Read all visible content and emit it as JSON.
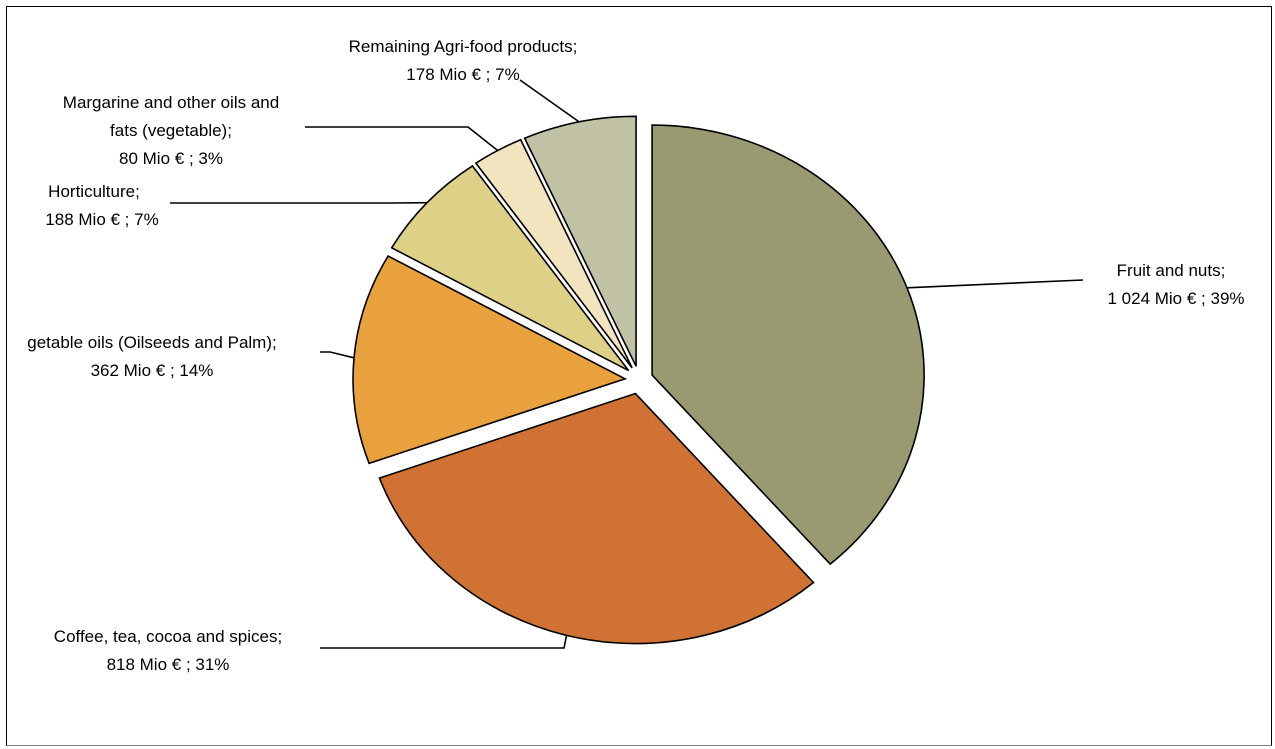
{
  "chart_data": {
    "type": "pie",
    "title": "",
    "slices": [
      {
        "label": "Fruit and nuts;",
        "value": 1024,
        "value_text": "1 024 Mio € ; 39%",
        "percent": 39,
        "color": "#9a9a72"
      },
      {
        "label": "Coffee, tea, cocoa and spices;",
        "value": 818,
        "value_text": "818 Mio € ; 31%",
        "percent": 31,
        "color": "#d07234"
      },
      {
        "label": "getable oils (Oilseeds and Palm);",
        "value": 362,
        "value_text": "362 Mio € ; 14%",
        "percent": 14,
        "color": "#e8a13d"
      },
      {
        "label": "Horticulture;",
        "value": 188,
        "value_text": "188 Mio € ; 7%",
        "percent": 7,
        "color": "#ddd188"
      },
      {
        "label": "Margarine and other oils and fats (vegetable);",
        "label_lines": [
          "Margarine and other oils and",
          "fats (vegetable);"
        ],
        "value": 80,
        "value_text": "80 Mio € ; 3%",
        "percent": 3,
        "color": "#f3e4c0"
      },
      {
        "label": "Remaining Agri-food products;",
        "value": 178,
        "value_text": "178 Mio € ; 7%",
        "percent": 7,
        "color": "#c0c1a5"
      }
    ],
    "exploded": true,
    "legend": "none",
    "data_labels": "outside-with-leader-lines"
  }
}
